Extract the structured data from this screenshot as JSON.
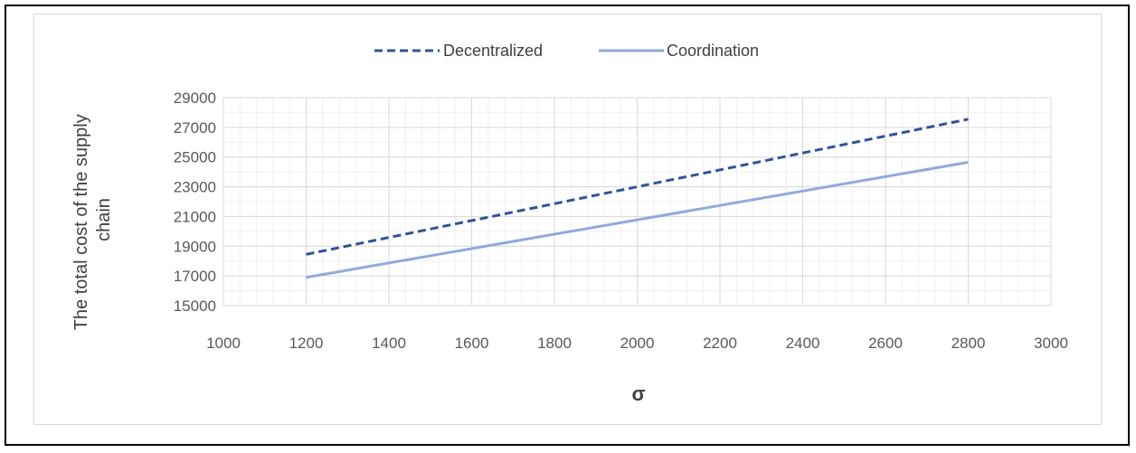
{
  "chart_data": {
    "type": "line",
    "title": "",
    "xlabel": "σ",
    "ylabel": [
      "The total cost of the supply",
      "chain"
    ],
    "xlim": [
      1000,
      3000
    ],
    "ylim": [
      15000,
      29000
    ],
    "x_ticks": [
      1000,
      1200,
      1400,
      1600,
      1800,
      2000,
      2200,
      2400,
      2600,
      2800,
      3000
    ],
    "y_ticks": [
      15000,
      17000,
      19000,
      21000,
      23000,
      25000,
      27000,
      29000
    ],
    "grid": true,
    "legend_position": "top",
    "series": [
      {
        "name": "Decentralized",
        "style": "dashed",
        "color": "#2f5597",
        "x": [
          1200,
          2800
        ],
        "y": [
          18450,
          27550
        ]
      },
      {
        "name": "Coordination",
        "style": "solid",
        "color": "#8faadc",
        "x": [
          1200,
          2800
        ],
        "y": [
          16900,
          24650
        ]
      }
    ]
  }
}
